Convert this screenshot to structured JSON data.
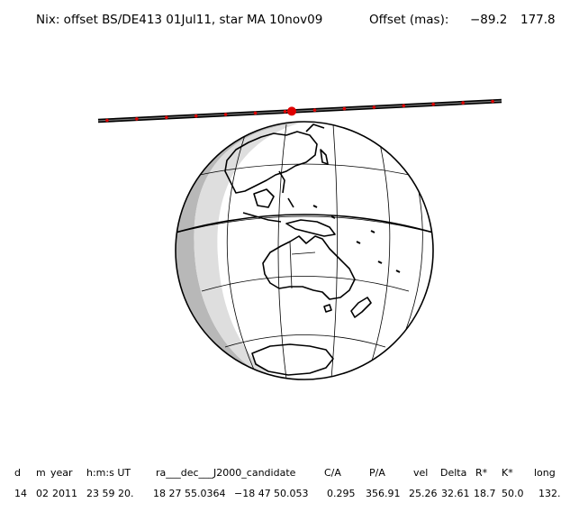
{
  "header": {
    "title": "Nix: offset BS/DE413 01Jul11, star MA 10nov09",
    "offset_label": "Offset (mas):",
    "offset_x": "−89.2",
    "offset_y": "177.8"
  },
  "colors": {
    "ink": "#000000",
    "shadow_dark": "#b8b8b8",
    "shadow_light": "#dedede",
    "path_dot": "#e00000"
  },
  "table": {
    "headers": [
      "d",
      "m",
      "year",
      "h:m:s UT",
      "ra___dec___J2000_candidate",
      "C/A",
      "P/A",
      "vel",
      "Delta",
      "R*",
      "K*",
      "long"
    ],
    "values": [
      "14",
      "02",
      "2011",
      "23 59 20.",
      "18 27 55.0364",
      "−18 47",
      "50.053",
      "0.295",
      "356.91",
      "25.26",
      "32.61",
      "18.7",
      "50.0",
      "132."
    ]
  }
}
